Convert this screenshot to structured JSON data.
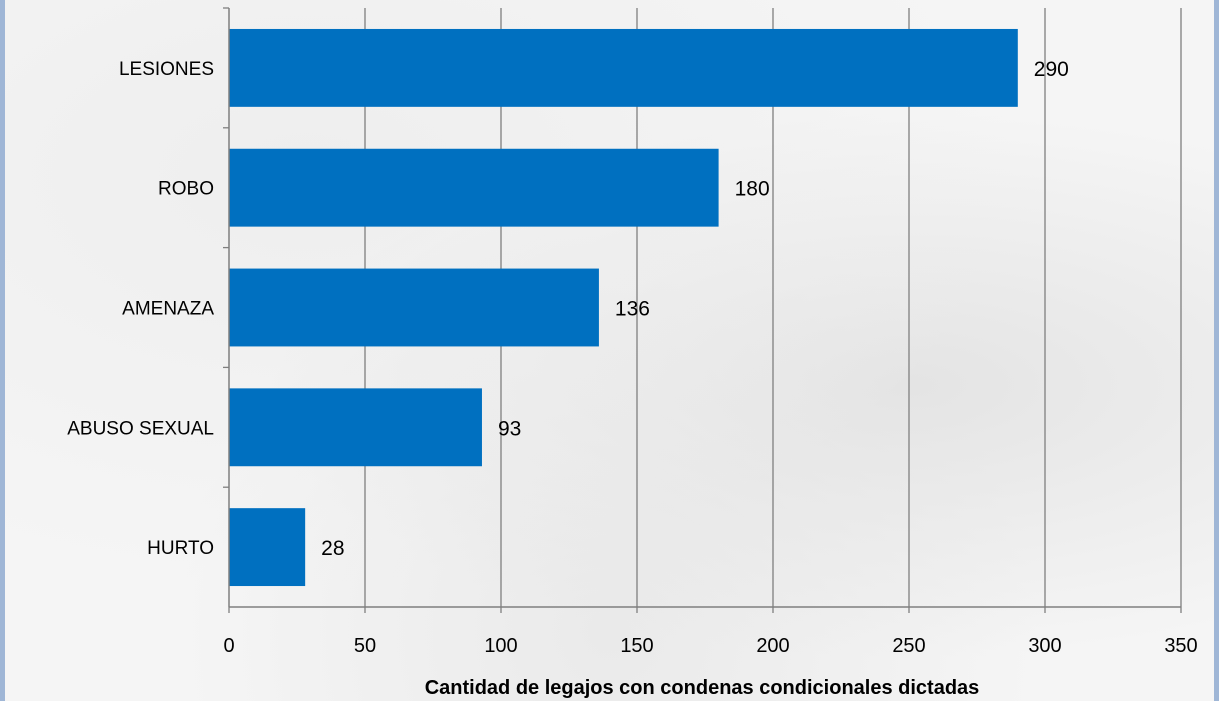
{
  "chart_data": {
    "type": "bar",
    "orientation": "horizontal",
    "categories": [
      "LESIONES",
      "ROBO",
      "AMENAZA",
      "ABUSO SEXUAL",
      "HURTO"
    ],
    "values": [
      290,
      180,
      136,
      93,
      28
    ],
    "title": "",
    "xlabel": "Cantidad de legajos con condenas condicionales dictadas",
    "ylabel": "",
    "xlim": [
      0,
      350
    ],
    "xticks": [
      0,
      50,
      100,
      150,
      200,
      250,
      300,
      350
    ],
    "grid": "vertical",
    "bar_color": "#0070c0",
    "gridline_color": "#7f7f7f",
    "legend": "none"
  }
}
